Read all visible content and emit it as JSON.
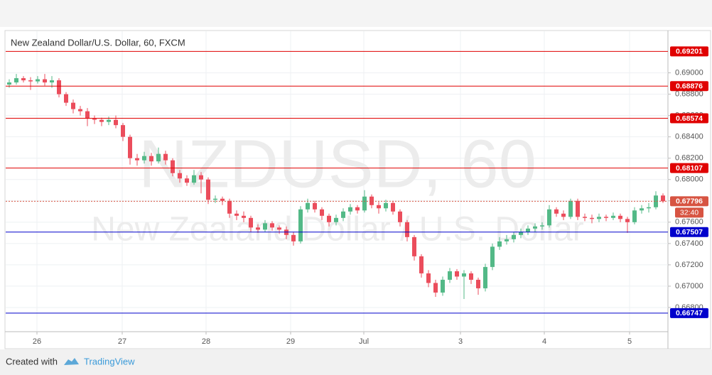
{
  "header": {
    "title": "New Zealand Dollar/U.S. Dollar, 60, FXCM"
  },
  "footer": {
    "created": "Created with",
    "brand": "TradingView"
  },
  "chart_data": {
    "type": "candlestick",
    "watermark": {
      "symbol": "NZDUSD, 60",
      "name": "New Zealand Dollar / U.S. Dollar"
    },
    "up_color": "#53b987",
    "down_color": "#eb4d5c",
    "ylim": [
      0.6658,
      0.6939
    ],
    "yticks": [
      {
        "value": 0.69,
        "label": "0.69000"
      },
      {
        "value": 0.688,
        "label": "0.68800"
      },
      {
        "value": 0.686,
        "label": "0.68600"
      },
      {
        "value": 0.684,
        "label": "0.68400"
      },
      {
        "value": 0.682,
        "label": "0.68200"
      },
      {
        "value": 0.68,
        "label": "0.68000"
      },
      {
        "value": 0.678,
        "label": "0.67800"
      },
      {
        "value": 0.676,
        "label": "0.67600"
      },
      {
        "value": 0.674,
        "label": "0.67400"
      },
      {
        "value": 0.672,
        "label": "0.67200"
      },
      {
        "value": 0.67,
        "label": "0.67000"
      },
      {
        "value": 0.668,
        "label": "0.66800"
      }
    ],
    "xlim": [
      -0.5,
      92.7
    ],
    "xticks": [
      {
        "value": 3.9,
        "label": "26"
      },
      {
        "value": 15.9,
        "label": "27"
      },
      {
        "value": 27.7,
        "label": "28"
      },
      {
        "value": 39.6,
        "label": "29"
      },
      {
        "value": 49.9,
        "label": "Jul"
      },
      {
        "value": 63.5,
        "label": "3"
      },
      {
        "value": 75.3,
        "label": "4"
      },
      {
        "value": 87.3,
        "label": "5"
      }
    ],
    "grid": true,
    "levels": [
      {
        "value": 0.69201,
        "color": "#e00000",
        "style": "solid"
      },
      {
        "value": 0.68876,
        "color": "#e00000",
        "style": "solid"
      },
      {
        "value": 0.68574,
        "color": "#e00000",
        "style": "solid"
      },
      {
        "value": 0.68107,
        "color": "#e00000",
        "style": "solid"
      },
      {
        "value": 0.67507,
        "color": "#0000cc",
        "style": "solid"
      },
      {
        "value": 0.66747,
        "color": "#0000cc",
        "style": "solid"
      },
      {
        "value": 0.67796,
        "color": "#d75442",
        "style": "dotted",
        "countdown": "32:40"
      }
    ],
    "candles": [
      [
        0.6889,
        0.6894,
        0.6886,
        0.6891
      ],
      [
        0.6891,
        0.6899,
        0.6889,
        0.6895
      ],
      [
        0.6895,
        0.6897,
        0.6891,
        0.6893
      ],
      [
        0.6893,
        0.6896,
        0.6884,
        0.6892
      ],
      [
        0.6892,
        0.6897,
        0.689,
        0.6894
      ],
      [
        0.6894,
        0.6899,
        0.6888,
        0.6891
      ],
      [
        0.6891,
        0.6897,
        0.6886,
        0.6893
      ],
      [
        0.6893,
        0.6895,
        0.6877,
        0.688
      ],
      [
        0.688,
        0.6882,
        0.6869,
        0.6872
      ],
      [
        0.6872,
        0.6875,
        0.6862,
        0.6866
      ],
      [
        0.6866,
        0.6869,
        0.686,
        0.6864
      ],
      [
        0.6864,
        0.6867,
        0.685,
        0.6857
      ],
      [
        0.6857,
        0.686,
        0.6852,
        0.6856
      ],
      [
        0.6856,
        0.6858,
        0.685,
        0.6854
      ],
      [
        0.6854,
        0.6859,
        0.6851,
        0.6856
      ],
      [
        0.6856,
        0.686,
        0.6848,
        0.6851
      ],
      [
        0.6851,
        0.6853,
        0.6836,
        0.684
      ],
      [
        0.684,
        0.6842,
        0.6814,
        0.682
      ],
      [
        0.682,
        0.6824,
        0.6813,
        0.6818
      ],
      [
        0.6818,
        0.6826,
        0.6815,
        0.6822
      ],
      [
        0.6822,
        0.6825,
        0.6813,
        0.6817
      ],
      [
        0.6817,
        0.683,
        0.6815,
        0.6824
      ],
      [
        0.6824,
        0.6827,
        0.6814,
        0.6818
      ],
      [
        0.6818,
        0.682,
        0.6803,
        0.6806
      ],
      [
        0.6806,
        0.6809,
        0.6797,
        0.6801
      ],
      [
        0.6801,
        0.6804,
        0.6794,
        0.6797
      ],
      [
        0.6797,
        0.6809,
        0.6795,
        0.6804
      ],
      [
        0.6804,
        0.6807,
        0.6787,
        0.68
      ],
      [
        0.68,
        0.6802,
        0.6777,
        0.6781
      ],
      [
        0.6781,
        0.6785,
        0.6778,
        0.6782
      ],
      [
        0.6782,
        0.6784,
        0.6776,
        0.678
      ],
      [
        0.678,
        0.6782,
        0.6764,
        0.6768
      ],
      [
        0.6768,
        0.6771,
        0.6762,
        0.6766
      ],
      [
        0.6766,
        0.677,
        0.676,
        0.6764
      ],
      [
        0.6764,
        0.6766,
        0.6751,
        0.6755
      ],
      [
        0.6755,
        0.6758,
        0.675,
        0.6753
      ],
      [
        0.6753,
        0.6762,
        0.6751,
        0.6759
      ],
      [
        0.6759,
        0.6761,
        0.6752,
        0.6755
      ],
      [
        0.6755,
        0.6757,
        0.6749,
        0.6753
      ],
      [
        0.6753,
        0.6756,
        0.6744,
        0.6748
      ],
      [
        0.6748,
        0.6751,
        0.6738,
        0.6742
      ],
      [
        0.6742,
        0.6775,
        0.674,
        0.6772
      ],
      [
        0.6772,
        0.6782,
        0.6769,
        0.6778
      ],
      [
        0.6778,
        0.678,
        0.6769,
        0.6772
      ],
      [
        0.6772,
        0.6774,
        0.6762,
        0.6766
      ],
      [
        0.6766,
        0.6768,
        0.6756,
        0.676
      ],
      [
        0.676,
        0.6767,
        0.6757,
        0.6764
      ],
      [
        0.6764,
        0.6773,
        0.6761,
        0.677
      ],
      [
        0.677,
        0.6777,
        0.6767,
        0.6774
      ],
      [
        0.6774,
        0.6776,
        0.6768,
        0.6771
      ],
      [
        0.6771,
        0.679,
        0.6769,
        0.6784
      ],
      [
        0.6784,
        0.6786,
        0.6773,
        0.6776
      ],
      [
        0.6776,
        0.6779,
        0.6768,
        0.6773
      ],
      [
        0.6773,
        0.6781,
        0.677,
        0.6778
      ],
      [
        0.6778,
        0.678,
        0.6767,
        0.677
      ],
      [
        0.677,
        0.6772,
        0.6756,
        0.676
      ],
      [
        0.676,
        0.6762,
        0.6742,
        0.6746
      ],
      [
        0.6746,
        0.6748,
        0.6724,
        0.6728
      ],
      [
        0.6728,
        0.673,
        0.6708,
        0.6712
      ],
      [
        0.6712,
        0.6715,
        0.6699,
        0.6703
      ],
      [
        0.6703,
        0.6706,
        0.669,
        0.6694
      ],
      [
        0.6694,
        0.6709,
        0.6691,
        0.6706
      ],
      [
        0.6706,
        0.6717,
        0.6703,
        0.6714
      ],
      [
        0.6714,
        0.6716,
        0.6706,
        0.6709
      ],
      [
        0.6709,
        0.6715,
        0.6688,
        0.6712
      ],
      [
        0.6712,
        0.6714,
        0.6702,
        0.6706
      ],
      [
        0.6706,
        0.6708,
        0.6692,
        0.6698
      ],
      [
        0.6698,
        0.6721,
        0.6695,
        0.6718
      ],
      [
        0.6718,
        0.674,
        0.6715,
        0.6737
      ],
      [
        0.6737,
        0.6746,
        0.6734,
        0.6742
      ],
      [
        0.6742,
        0.6748,
        0.6739,
        0.6744
      ],
      [
        0.6744,
        0.6751,
        0.6741,
        0.6748
      ],
      [
        0.6748,
        0.6754,
        0.6745,
        0.6751
      ],
      [
        0.6751,
        0.6757,
        0.6748,
        0.6754
      ],
      [
        0.6754,
        0.6759,
        0.6751,
        0.6756
      ],
      [
        0.6756,
        0.676,
        0.6753,
        0.6757
      ],
      [
        0.6757,
        0.6776,
        0.6755,
        0.6772
      ],
      [
        0.6772,
        0.6774,
        0.6765,
        0.6768
      ],
      [
        0.6768,
        0.6771,
        0.6762,
        0.6765
      ],
      [
        0.6765,
        0.6782,
        0.6763,
        0.678
      ],
      [
        0.678,
        0.6782,
        0.6762,
        0.6765
      ],
      [
        0.6765,
        0.6768,
        0.6761,
        0.6764
      ],
      [
        0.6764,
        0.6767,
        0.6759,
        0.6763
      ],
      [
        0.6763,
        0.6768,
        0.676,
        0.6765
      ],
      [
        0.6765,
        0.6767,
        0.6761,
        0.6764
      ],
      [
        0.6764,
        0.6769,
        0.6762,
        0.6766
      ],
      [
        0.6766,
        0.6768,
        0.676,
        0.6763
      ],
      [
        0.6763,
        0.6765,
        0.675,
        0.676
      ],
      [
        0.676,
        0.6774,
        0.6758,
        0.6771
      ],
      [
        0.6771,
        0.6776,
        0.6768,
        0.6773
      ],
      [
        0.6773,
        0.6778,
        0.6769,
        0.6774
      ],
      [
        0.6774,
        0.6789,
        0.6772,
        0.6785
      ],
      [
        0.6785,
        0.6787,
        0.6778,
        0.67796
      ]
    ]
  }
}
